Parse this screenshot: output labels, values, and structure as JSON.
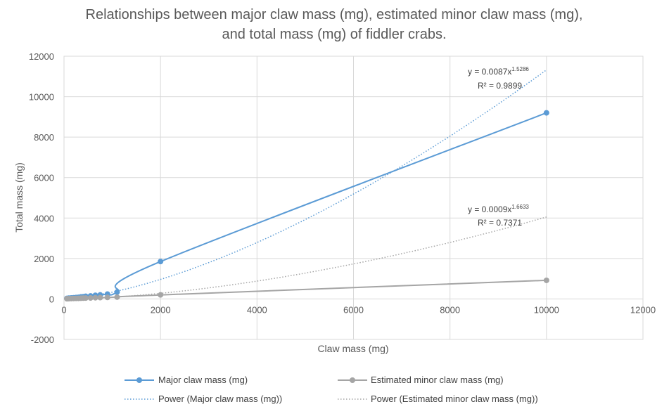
{
  "chart_data": {
    "type": "scatter",
    "title_line1": "Relationships between major claw mass (mg), estimated minor claw mass (mg),",
    "title_line2": "and total mass (mg) of fiddler crabs.",
    "xlabel": "Claw mass (mg)",
    "ylabel": "Total mass (mg)",
    "xlim": [
      0,
      12000
    ],
    "ylim": [
      -2000,
      12000
    ],
    "xticks": [
      0,
      2000,
      4000,
      6000,
      8000,
      10000,
      12000
    ],
    "yticks": [
      -2000,
      0,
      2000,
      4000,
      6000,
      8000,
      10000,
      12000
    ],
    "xtick_labels": [
      "0",
      "2000",
      "4000",
      "6000",
      "8000",
      "10000",
      "12000"
    ],
    "ytick_labels": [
      "-2000",
      "0",
      "2000",
      "4000",
      "6000",
      "8000",
      "10000",
      "12000"
    ],
    "grid": true,
    "legend_position": "bottom",
    "series": [
      {
        "name": "Major claw mass (mg)",
        "color": "#5b9bd5",
        "x": [
          60,
          100,
          150,
          200,
          250,
          300,
          350,
          400,
          450,
          550,
          650,
          750,
          900,
          1100,
          2000,
          10000
        ],
        "y": [
          30,
          40,
          50,
          60,
          70,
          80,
          100,
          110,
          130,
          150,
          180,
          200,
          240,
          340,
          1850,
          9200
        ]
      },
      {
        "name": "Estimated minor claw mass (mg)",
        "color": "#a5a5a5",
        "x": [
          60,
          100,
          150,
          200,
          250,
          300,
          350,
          400,
          450,
          550,
          650,
          750,
          900,
          1100,
          2000,
          10000
        ],
        "y": [
          10,
          15,
          20,
          25,
          30,
          30,
          35,
          40,
          45,
          50,
          60,
          65,
          75,
          90,
          200,
          920
        ]
      }
    ],
    "trendlines": [
      {
        "name": "Power (Major claw mass (mg))",
        "series": "Major claw mass (mg)",
        "type": "power",
        "coefficient": 0.0087,
        "exponent": 1.5286,
        "r_squared": 0.9899,
        "eq_prefix": "y = 0.0087x",
        "eq_exp": "1.5286",
        "r2_label": "R² = 0.9899",
        "color": "#5b9bd5"
      },
      {
        "name": "Power (Estimated minor claw mass (mg))",
        "series": "Estimated minor claw mass (mg)",
        "type": "power",
        "coefficient": 0.0009,
        "exponent": 1.6633,
        "r_squared": 0.7371,
        "eq_prefix": "y = 0.0009x",
        "eq_exp": "1.6633",
        "r2_label": "R² = 0.7371",
        "color": "#a5a5a5"
      }
    ]
  }
}
